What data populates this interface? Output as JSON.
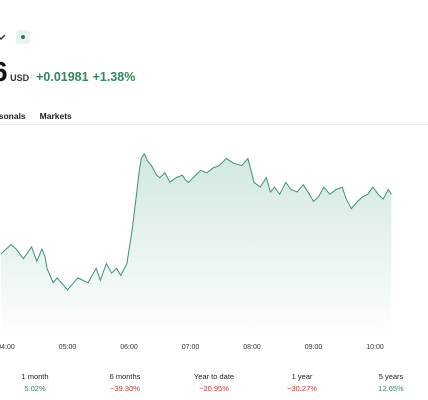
{
  "price": {
    "main": "6",
    "currency": "USD",
    "change": "+0.01981",
    "change_pct": "+1.38%"
  },
  "tabs": [
    "asonals",
    "Markets"
  ],
  "colors": {
    "up": "#2f8a5c",
    "down": "#c0392b",
    "line": "#3b9470",
    "fill": "#d9ede3"
  },
  "chart_data": {
    "type": "area",
    "x_ticks": [
      "04:00",
      "05:00",
      "06:00",
      "07:00",
      "08:00",
      "09:00",
      "10:00"
    ],
    "x": [
      "03:55",
      "04:05",
      "04:10",
      "04:17",
      "04:25",
      "04:30",
      "04:35",
      "04:38",
      "04:40",
      "04:46",
      "04:50",
      "05:00",
      "05:10",
      "05:20",
      "05:28",
      "05:32",
      "05:38",
      "05:43",
      "05:48",
      "05:52",
      "05:58",
      "06:03",
      "06:07",
      "06:10",
      "06:12",
      "06:15",
      "06:18",
      "06:22",
      "06:27",
      "06:30",
      "06:35",
      "06:40",
      "06:46",
      "06:52",
      "06:55",
      "06:58",
      "07:05",
      "07:10",
      "07:16",
      "07:22",
      "07:28",
      "07:35",
      "07:42",
      "07:50",
      "07:56",
      "08:02",
      "08:08",
      "08:14",
      "08:18",
      "08:22",
      "08:27",
      "08:33",
      "08:38",
      "08:44",
      "08:50",
      "08:56",
      "09:00",
      "09:05",
      "09:10",
      "09:16",
      "09:22",
      "09:28",
      "09:32",
      "09:37",
      "09:43",
      "09:48",
      "09:53",
      "09:58",
      "10:03",
      "10:08",
      "10:13",
      "10:16"
    ],
    "y": [
      1.396,
      1.4,
      1.398,
      1.394,
      1.399,
      1.393,
      1.398,
      1.395,
      1.39,
      1.384,
      1.386,
      1.381,
      1.386,
      1.384,
      1.39,
      1.385,
      1.392,
      1.388,
      1.39,
      1.387,
      1.392,
      1.406,
      1.42,
      1.431,
      1.436,
      1.438,
      1.435,
      1.433,
      1.429,
      1.428,
      1.43,
      1.426,
      1.428,
      1.429,
      1.427,
      1.426,
      1.429,
      1.431,
      1.43,
      1.432,
      1.433,
      1.436,
      1.434,
      1.433,
      1.436,
      1.426,
      1.424,
      1.428,
      1.422,
      1.424,
      1.421,
      1.426,
      1.423,
      1.422,
      1.425,
      1.421,
      1.418,
      1.42,
      1.424,
      1.421,
      1.423,
      1.424,
      1.419,
      1.415,
      1.418,
      1.42,
      1.421,
      1.424,
      1.421,
      1.419,
      1.423,
      1.421
    ],
    "ylim": [
      1.36,
      1.45
    ],
    "grid": false
  },
  "performance": [
    {
      "label": "1 month",
      "value": "5.02%",
      "trend": "up"
    },
    {
      "label": "6 months",
      "value": "−39.30%",
      "trend": "down"
    },
    {
      "label": "Year to date",
      "value": "−20.95%",
      "trend": "down"
    },
    {
      "label": "1 year",
      "value": "−30.27%",
      "trend": "down"
    },
    {
      "label": "5 years",
      "value": "12.65%",
      "trend": "up"
    }
  ]
}
